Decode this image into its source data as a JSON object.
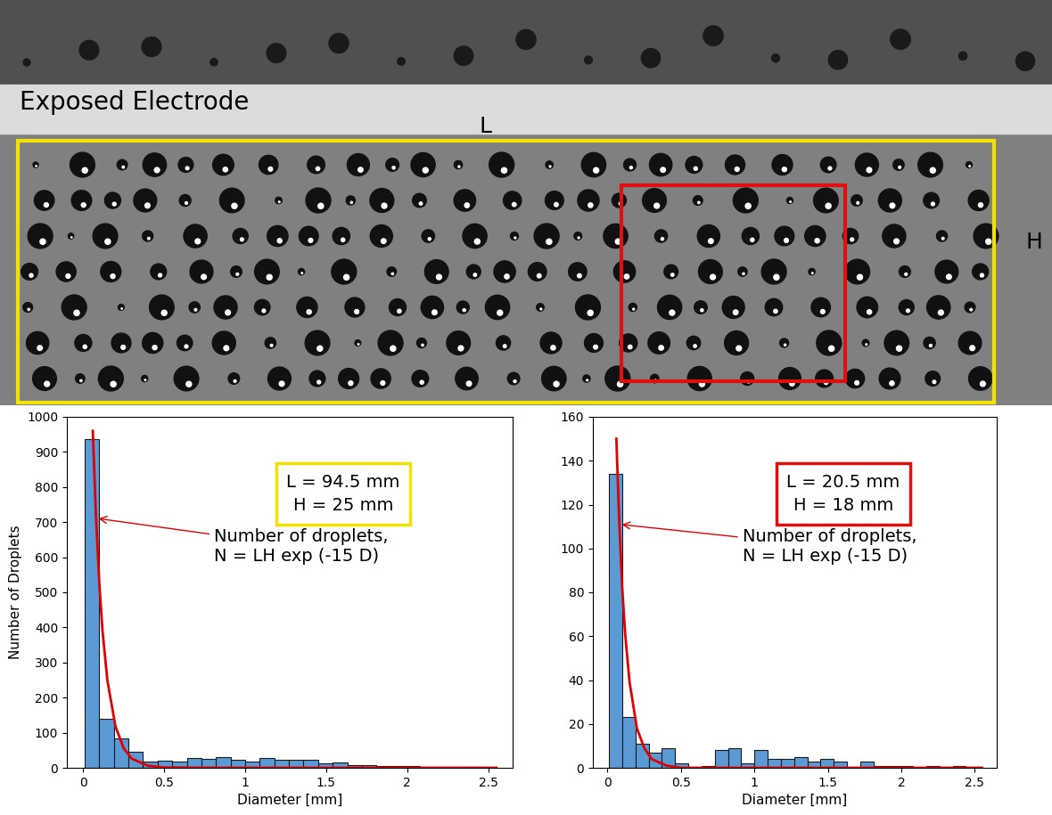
{
  "photo": {
    "label": "Exposed Electrode",
    "width_label": "L",
    "height_label": "H"
  },
  "chart_data": [
    {
      "type": "histogram",
      "bins": [
        0.01,
        0.1,
        0.19,
        0.28,
        0.37,
        0.46,
        0.55,
        0.64,
        0.73,
        0.82,
        0.91,
        1.0,
        1.09,
        1.18,
        1.27,
        1.36,
        1.45,
        1.54,
        1.63,
        1.72,
        1.81,
        1.9,
        1.99,
        2.08,
        2.17,
        2.26,
        2.35,
        2.44,
        2.53
      ],
      "counts": [
        937,
        140,
        83,
        45,
        18,
        20,
        17,
        27,
        25,
        30,
        23,
        18,
        27,
        23,
        22,
        22,
        13,
        14,
        8,
        8,
        6,
        5,
        5,
        2,
        2,
        3,
        2,
        1
      ],
      "color": "#5b9bd5",
      "curve": {
        "x": [
          0.06,
          0.08,
          0.1,
          0.12,
          0.15,
          0.2,
          0.25,
          0.3,
          0.4,
          0.5,
          0.75,
          1.0,
          1.5,
          2.0,
          2.55
        ],
        "values": [
          960,
          711,
          527,
          390,
          249,
          118,
          56,
          26,
          6,
          1,
          0,
          0,
          0,
          0,
          0
        ],
        "color": "#e00000"
      },
      "xlabel": "Diameter [mm]",
      "ylabel": "Number of Droplets",
      "xlim": [
        -0.1,
        2.65
      ],
      "xticks": [
        0,
        0.5,
        1,
        1.5,
        2,
        2.5
      ],
      "ylim": [
        0,
        1000
      ],
      "yticks": [
        0,
        100,
        200,
        300,
        400,
        500,
        600,
        700,
        800,
        900,
        1000
      ],
      "annotations": [
        {
          "text": "L = 94.5 mm\nH = 25 mm",
          "color": "#f2e200"
        },
        {
          "text": "Number of droplets,\nN = LH exp (-15 D)",
          "color": "#e00000"
        }
      ]
    },
    {
      "type": "histogram",
      "bins": [
        0.01,
        0.1,
        0.19,
        0.28,
        0.37,
        0.46,
        0.55,
        0.64,
        0.73,
        0.82,
        0.91,
        1.0,
        1.09,
        1.18,
        1.27,
        1.36,
        1.45,
        1.54,
        1.63,
        1.72,
        1.81,
        1.9,
        1.99,
        2.08,
        2.17,
        2.26,
        2.35,
        2.44,
        2.53
      ],
      "counts": [
        134,
        23,
        11,
        7,
        9,
        2,
        0,
        1,
        8,
        9,
        2,
        8,
        4,
        4,
        5,
        3,
        4,
        3,
        0,
        3,
        1,
        1,
        1,
        0,
        1,
        0,
        1,
        0
      ],
      "color": "#5b9bd5",
      "curve": {
        "x": [
          0.06,
          0.08,
          0.1,
          0.12,
          0.15,
          0.2,
          0.25,
          0.3,
          0.4,
          0.5,
          0.75,
          1.0,
          1.5,
          2.0,
          2.55
        ],
        "values": [
          150,
          111,
          82,
          61,
          39,
          18,
          9,
          4,
          1,
          0,
          0,
          0,
          0,
          0,
          0
        ],
        "color": "#e00000"
      },
      "xlabel": "Diameter [mm]",
      "xlim": [
        -0.1,
        2.65
      ],
      "xticks": [
        0,
        0.5,
        1,
        1.5,
        2,
        2.5
      ],
      "ylim": [
        0,
        160
      ],
      "yticks": [
        0,
        20,
        40,
        60,
        80,
        100,
        120,
        140,
        160
      ],
      "annotations": [
        {
          "text": "L = 20.5 mm\nH = 18 mm",
          "color": "#e01010"
        },
        {
          "text": "Number of droplets,\nN = LH exp (-15 D)",
          "color": "#e00000"
        }
      ]
    }
  ]
}
